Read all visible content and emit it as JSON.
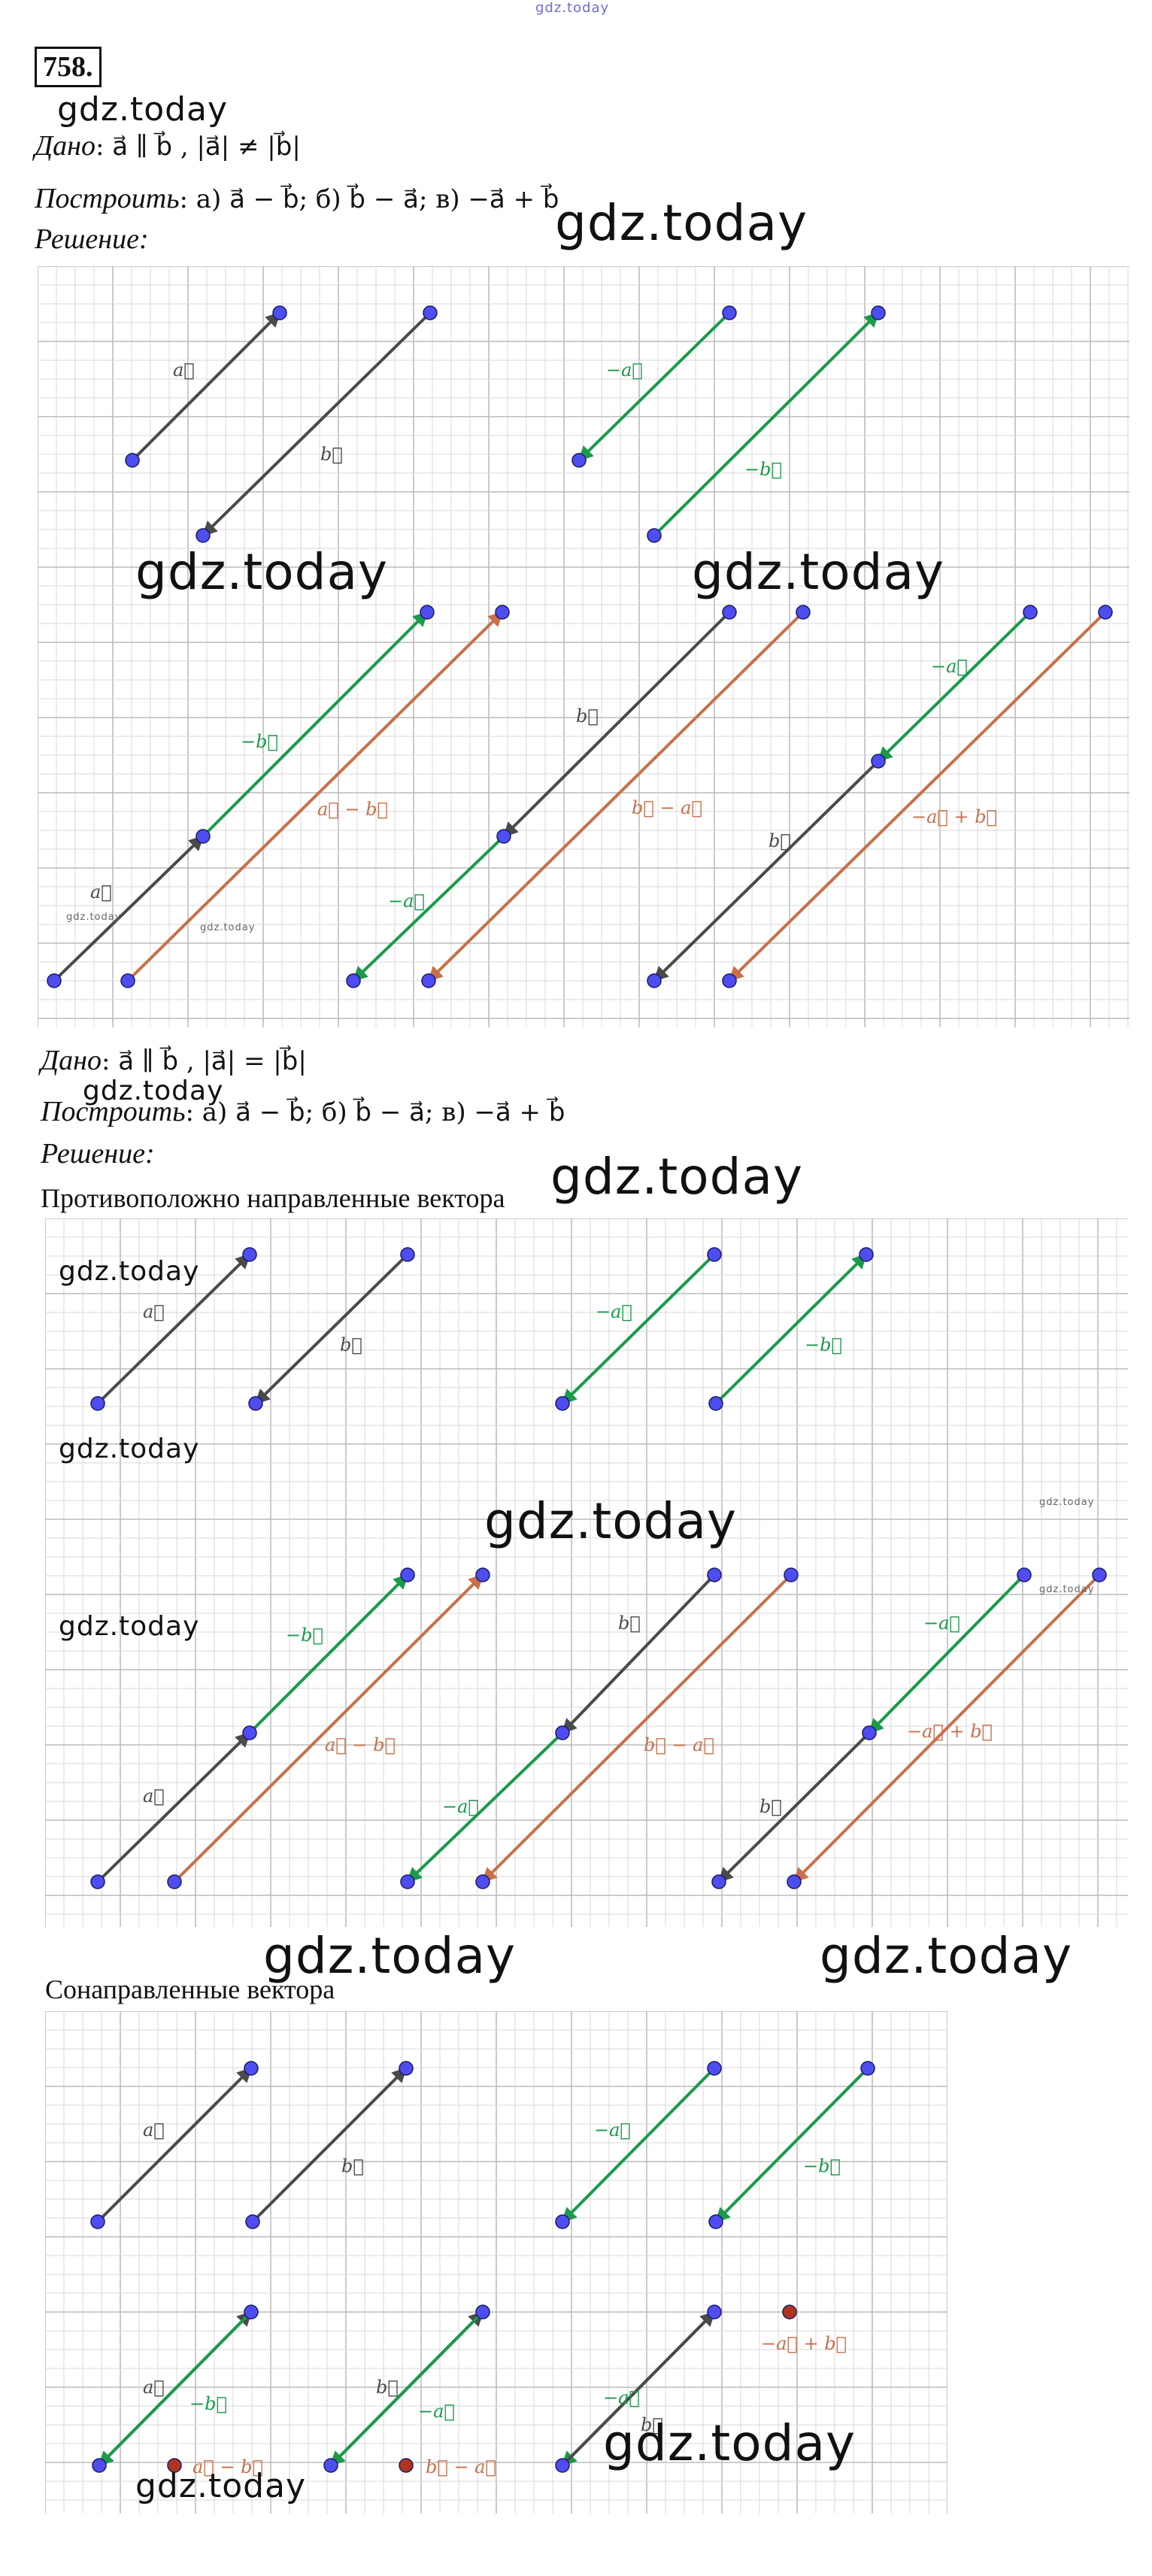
{
  "watermark": "gdz.today",
  "task_number": "758.",
  "part1": {
    "given_label": "Дано",
    "given_math": ": a⃗ ∥ b⃗ , |a⃗| ≠ |b⃗|",
    "construct_label": "Построить",
    "construct_math": ": а) a⃗ − b⃗; б) b⃗ − a⃗; в) −a⃗ + b⃗",
    "solution_label": "Решение",
    "solution_colon": ":"
  },
  "part2": {
    "given_label": "Дано",
    "given_math": ": a⃗ ∥ b⃗ , |a⃗| = |b⃗|",
    "construct_label": "Построить",
    "construct_math": ": а) a⃗ − b⃗; б) b⃗ − a⃗; в) −a⃗ + b⃗",
    "solution_label": "Решение",
    "solution_colon": ":",
    "opposite_heading": "Противоположно направленные вектора",
    "codirected_heading": "Сонаправленные вектора"
  },
  "vector_labels": {
    "a": "a⃗",
    "b": "b⃗",
    "neg_a": "−a⃗",
    "neg_b": "−b⃗",
    "a_minus_b": "a⃗ − b⃗",
    "b_minus_a": "b⃗ − a⃗",
    "neg_a_plus_b": "−a⃗ + b⃗"
  },
  "colors": {
    "grid": "#d9d9d9",
    "grid_major": "#bcbcbc",
    "vector_dark": "#4a4a4a",
    "vector_green": "#1a9a4a",
    "vector_orange": "#c8704a",
    "point_blue": "#4d4df0",
    "point_red": "#b0341c"
  }
}
